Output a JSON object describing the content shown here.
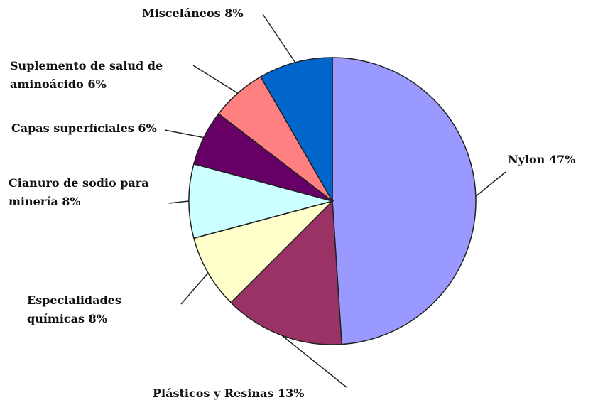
{
  "chart_data": {
    "type": "pie",
    "categories": [
      "Nylon",
      "Plásticos y Resinas",
      "Especialidades químicas",
      "Cianuro de sodio para minería",
      "Capas superficiales",
      "Suplemento de salud de aminoácido",
      "Misceláneos"
    ],
    "values": [
      47,
      13,
      8,
      8,
      6,
      6,
      8
    ],
    "value_labels": [
      "47%",
      "13%",
      "8%",
      "8%",
      "6%",
      "6%",
      "8%"
    ],
    "colors": [
      "#9999ff",
      "#993366",
      "#ffffcc",
      "#ccffff",
      "#660066",
      "#ff8080",
      "#0066cc"
    ]
  }
}
